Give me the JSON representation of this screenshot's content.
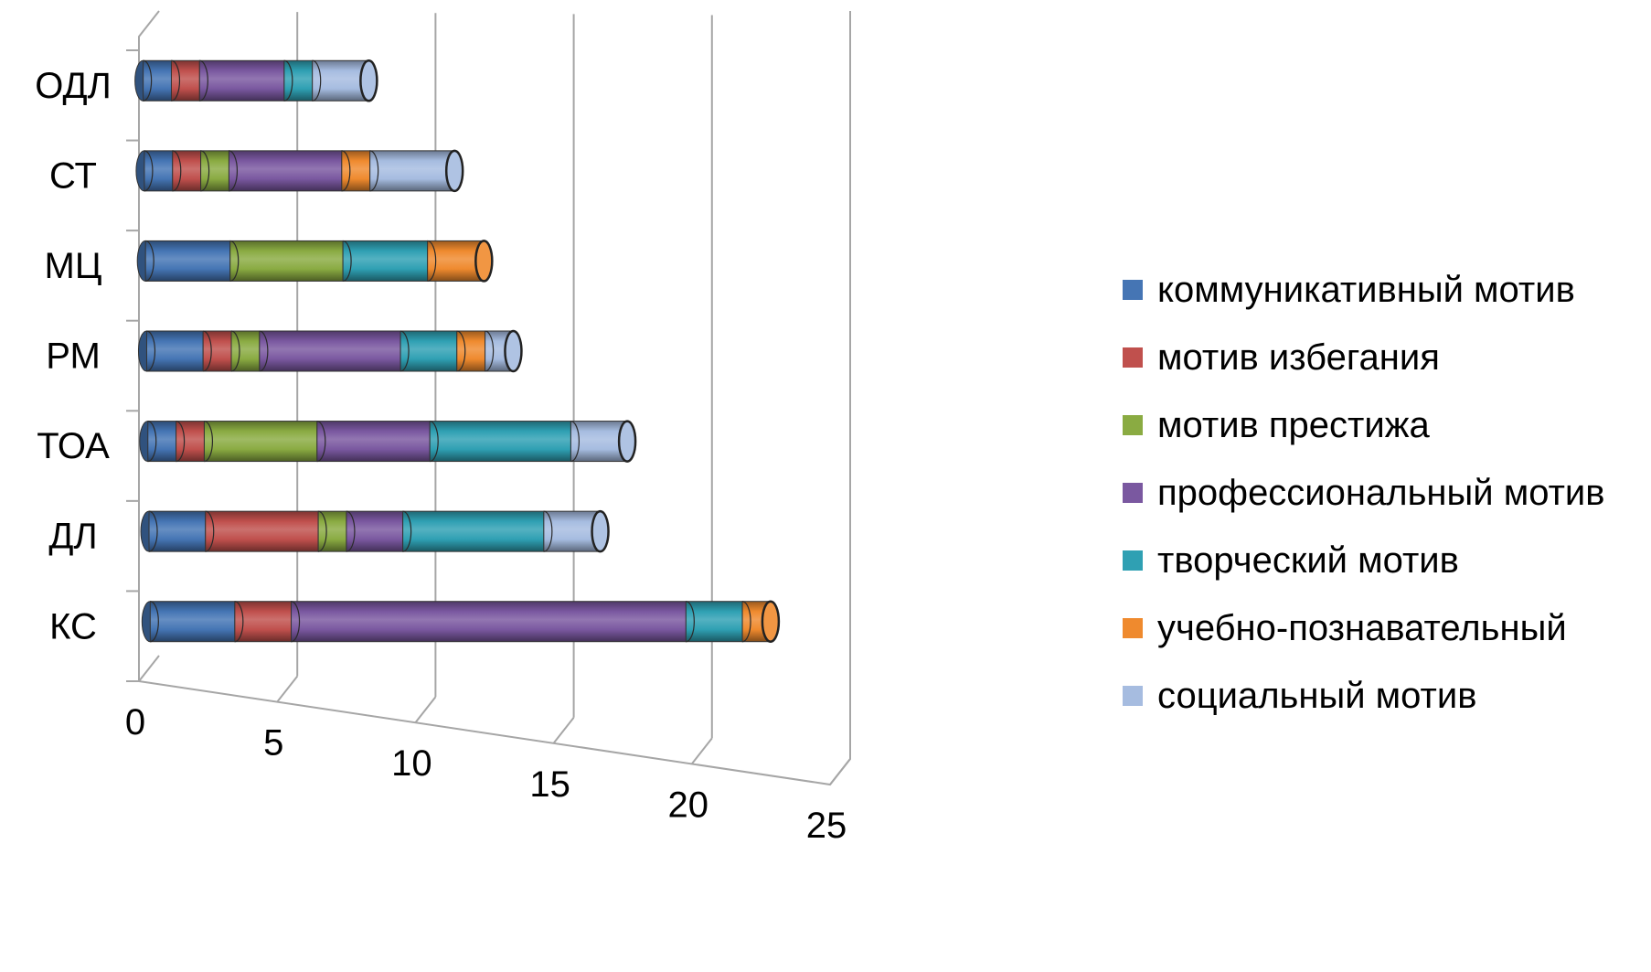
{
  "chart_data": {
    "type": "bar",
    "orientation": "horizontal",
    "stacked": true,
    "style": "3d-cylinder",
    "title": "",
    "xlabel": "",
    "ylabel": "",
    "xlim": [
      0,
      25
    ],
    "x_ticks": [
      0,
      5,
      10,
      15,
      20,
      25
    ],
    "grid": true,
    "legend_position": "right",
    "categories": [
      "ОДЛ",
      "СТ",
      "МЦ",
      "РМ",
      "ТОА",
      "ДЛ",
      "КС"
    ],
    "series": [
      {
        "name": "коммуникативный мотив",
        "color": "#4575b4",
        "values": [
          1,
          1,
          3,
          2,
          1,
          2,
          3
        ]
      },
      {
        "name": "мотив избегания",
        "color": "#c0504d",
        "values": [
          1,
          1,
          0,
          1,
          1,
          4,
          2
        ]
      },
      {
        "name": "мотив престижа",
        "color": "#8aab42",
        "values": [
          0,
          1,
          4,
          1,
          4,
          1,
          0
        ]
      },
      {
        "name": "профессиональный мотив",
        "color": "#7a58a0",
        "values": [
          3,
          4,
          0,
          5,
          4,
          2,
          14
        ]
      },
      {
        "name": "творческий мотив",
        "color": "#2fa0b3",
        "values": [
          1,
          0,
          3,
          2,
          5,
          5,
          2
        ]
      },
      {
        "name": "учебно-познавательный",
        "color": "#ef8a2e",
        "values": [
          0,
          1,
          2,
          1,
          0,
          0,
          1
        ]
      },
      {
        "name": "социальный мотив",
        "color": "#a6bce0",
        "values": [
          2,
          3,
          0,
          1,
          2,
          2,
          0
        ]
      }
    ]
  }
}
